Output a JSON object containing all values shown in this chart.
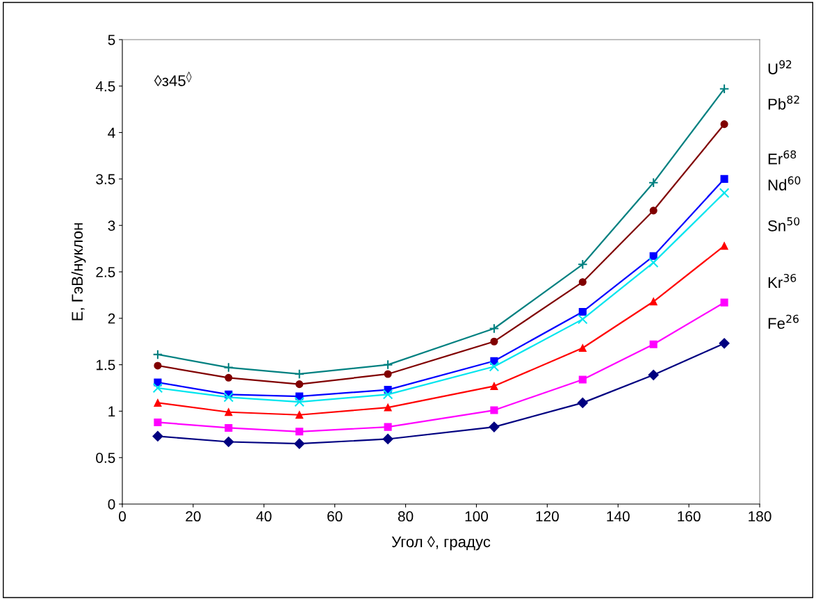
{
  "chart_data": {
    "type": "line",
    "xlabel": "Угол ◊, градус",
    "ylabel": "E, ГэВ/нуклон",
    "annotations": [
      {
        "text": "◊з45$^{◊}$"
      }
    ],
    "x": [
      10,
      30,
      50,
      75,
      105,
      130,
      150,
      170
    ],
    "xlim": [
      0,
      180
    ],
    "xticks": [
      0,
      20,
      40,
      60,
      80,
      100,
      120,
      140,
      160,
      180
    ],
    "ylim": [
      0,
      5
    ],
    "yticks": [
      0,
      0.5,
      1,
      1.5,
      2,
      2.5,
      3,
      3.5,
      4,
      4.5,
      5
    ],
    "grid": false,
    "legend": false,
    "line_style": "solid",
    "series": [
      {
        "name": "U$^{92}$",
        "color": "#008080",
        "marker": "plus",
        "values": [
          1.61,
          1.47,
          1.4,
          1.5,
          1.89,
          2.58,
          3.46,
          4.47
        ]
      },
      {
        "name": "Pb$^{82}$",
        "color": "#800000",
        "marker": "circle",
        "values": [
          1.49,
          1.36,
          1.29,
          1.4,
          1.75,
          2.39,
          3.16,
          4.09
        ]
      },
      {
        "name": "Er$^{68}$",
        "color": "#0000ff",
        "marker": "square",
        "values": [
          1.31,
          1.18,
          1.16,
          1.23,
          1.54,
          2.07,
          2.67,
          3.5
        ]
      },
      {
        "name": "Nd$^{60}$",
        "color": "#00e5ee",
        "marker": "cross",
        "values": [
          1.25,
          1.15,
          1.1,
          1.18,
          1.48,
          1.99,
          2.6,
          3.35
        ]
      },
      {
        "name": "Sn$^{50}$",
        "color": "#ff0000",
        "marker": "triangle",
        "values": [
          1.09,
          0.99,
          0.96,
          1.04,
          1.27,
          1.68,
          2.18,
          2.78
        ]
      },
      {
        "name": "Kr$^{36}$",
        "color": "#ff00ff",
        "marker": "square",
        "values": [
          0.88,
          0.82,
          0.78,
          0.83,
          1.01,
          1.34,
          1.72,
          2.17
        ]
      },
      {
        "name": "Fe$^{26}$",
        "color": "#000080",
        "marker": "diamond",
        "values": [
          0.73,
          0.67,
          0.65,
          0.7,
          0.83,
          1.09,
          1.39,
          1.73
        ]
      }
    ]
  }
}
